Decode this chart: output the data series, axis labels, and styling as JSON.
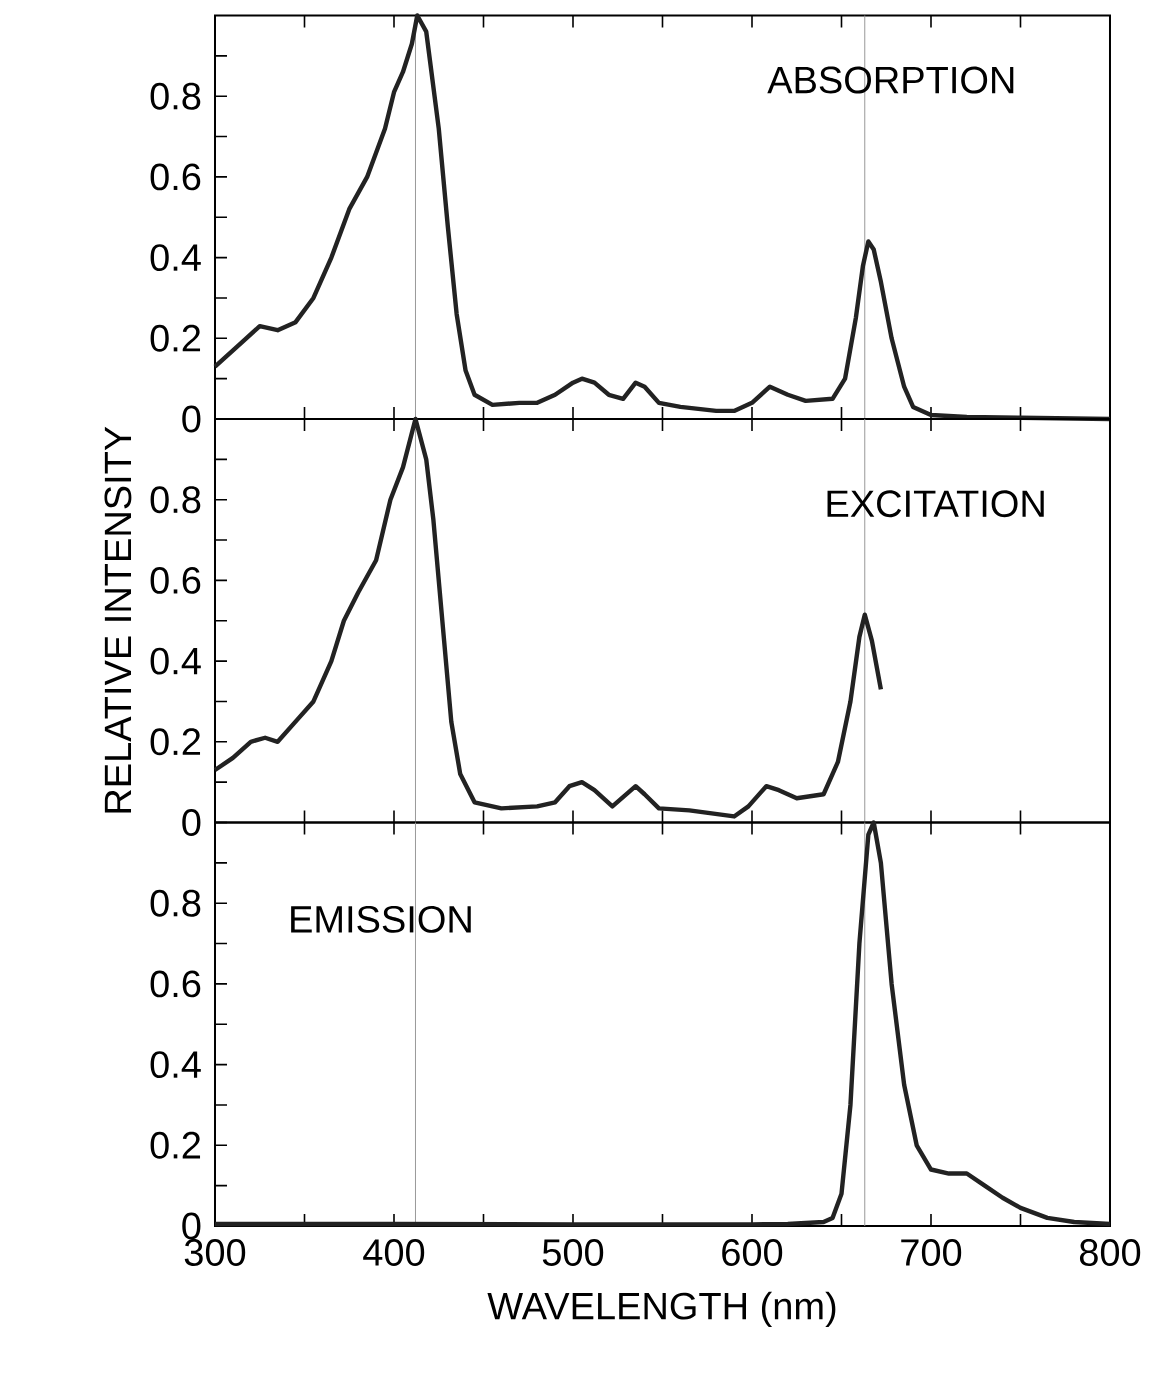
{
  "chart_data": [
    {
      "type": "line",
      "color": "#222222",
      "xlim": [
        300,
        800
      ],
      "ylim": [
        0,
        1
      ],
      "tick_labels": "y",
      "xticks": [
        300,
        {
          "value": 350,
          "label": null
        },
        400,
        {
          "value": 450,
          "label": null
        },
        500,
        {
          "value": 550,
          "label": null
        },
        600,
        {
          "value": 650,
          "label": null
        },
        700,
        {
          "value": 750,
          "label": null
        },
        800
      ],
      "yticks": [
        0,
        {
          "value": 0.1,
          "label": null
        },
        0.2,
        {
          "value": 0.3,
          "label": null
        },
        0.4,
        {
          "value": 0.5,
          "label": null
        },
        0.6,
        {
          "value": 0.7,
          "label": null
        },
        0.8,
        {
          "value": 0.9,
          "label": null
        }
      ],
      "annotations": [
        "ABSORPTION"
      ],
      "ref_lines": [
        {
          "axis": "x",
          "value": 412,
          "color": "#999999"
        },
        {
          "axis": "x",
          "value": 663,
          "color": "#999999"
        }
      ],
      "x": [
        300,
        315,
        325,
        335,
        345,
        355,
        365,
        375,
        385,
        395,
        400,
        405,
        410,
        413,
        418,
        425,
        430,
        435,
        440,
        445,
        455,
        470,
        480,
        490,
        500,
        505,
        512,
        520,
        528,
        535,
        540,
        548,
        560,
        580,
        590,
        600,
        610,
        620,
        630,
        645,
        652,
        658,
        662,
        665,
        668,
        672,
        678,
        685,
        690,
        700,
        720,
        750,
        800
      ],
      "values": [
        0.13,
        0.19,
        0.23,
        0.22,
        0.24,
        0.3,
        0.4,
        0.52,
        0.6,
        0.72,
        0.81,
        0.86,
        0.93,
        1.0,
        0.96,
        0.72,
        0.48,
        0.26,
        0.12,
        0.06,
        0.035,
        0.04,
        0.04,
        0.06,
        0.09,
        0.1,
        0.09,
        0.06,
        0.05,
        0.09,
        0.08,
        0.04,
        0.03,
        0.02,
        0.02,
        0.04,
        0.08,
        0.06,
        0.045,
        0.05,
        0.1,
        0.25,
        0.38,
        0.44,
        0.42,
        0.34,
        0.2,
        0.08,
        0.03,
        0.01,
        0.005,
        0.003,
        0
      ]
    },
    {
      "type": "line",
      "color": "#222222",
      "xlim": [
        300,
        800
      ],
      "ylim": [
        0,
        1
      ],
      "tick_labels": "y",
      "ylabel": "RELATIVE INTENSITY",
      "xticks": [
        300,
        {
          "value": 350,
          "label": null
        },
        400,
        {
          "value": 450,
          "label": null
        },
        500,
        {
          "value": 550,
          "label": null
        },
        600,
        {
          "value": 650,
          "label": null
        },
        700,
        {
          "value": 750,
          "label": null
        },
        800
      ],
      "yticks": [
        0,
        {
          "value": 0.1,
          "label": null
        },
        0.2,
        {
          "value": 0.3,
          "label": null
        },
        0.4,
        {
          "value": 0.5,
          "label": null
        },
        0.6,
        {
          "value": 0.7,
          "label": null
        },
        0.8,
        {
          "value": 0.9,
          "label": null
        }
      ],
      "annotations": [
        "EXCITATION"
      ],
      "ref_lines": [
        {
          "axis": "x",
          "value": 412,
          "color": "#999999"
        },
        {
          "axis": "x",
          "value": 663,
          "color": "#999999"
        }
      ],
      "x": [
        300,
        310,
        320,
        328,
        335,
        345,
        355,
        365,
        372,
        380,
        390,
        398,
        405,
        412,
        418,
        422,
        428,
        432,
        437,
        445,
        460,
        480,
        490,
        498,
        505,
        512,
        522,
        535,
        540,
        548,
        565,
        590,
        598,
        608,
        615,
        625,
        640,
        648,
        655,
        660,
        663,
        667,
        672
      ],
      "values": [
        0.13,
        0.16,
        0.2,
        0.21,
        0.2,
        0.25,
        0.3,
        0.4,
        0.5,
        0.57,
        0.65,
        0.8,
        0.88,
        1.0,
        0.9,
        0.75,
        0.45,
        0.25,
        0.12,
        0.05,
        0.035,
        0.04,
        0.05,
        0.09,
        0.1,
        0.08,
        0.04,
        0.09,
        0.07,
        0.035,
        0.03,
        0.015,
        0.04,
        0.09,
        0.08,
        0.06,
        0.07,
        0.15,
        0.3,
        0.46,
        0.515,
        0.45,
        0.33
      ]
    },
    {
      "type": "line",
      "color": "#222222",
      "xlim": [
        300,
        800
      ],
      "ylim": [
        0,
        1
      ],
      "xlabel": "WAVELENGTH (nm)",
      "xticks": [
        300,
        {
          "value": 350,
          "label": null
        },
        400,
        {
          "value": 450,
          "label": null
        },
        500,
        {
          "value": 550,
          "label": null
        },
        600,
        {
          "value": 650,
          "label": null
        },
        700,
        {
          "value": 750,
          "label": null
        },
        800
      ],
      "yticks": [
        0,
        {
          "value": 0.1,
          "label": null
        },
        0.2,
        {
          "value": 0.3,
          "label": null
        },
        0.4,
        {
          "value": 0.5,
          "label": null
        },
        0.6,
        {
          "value": 0.7,
          "label": null
        },
        0.8,
        {
          "value": 0.9,
          "label": null
        }
      ],
      "annotations": [
        "EMISSION"
      ],
      "ref_lines": [
        {
          "axis": "x",
          "value": 412,
          "color": "#999999"
        },
        {
          "axis": "x",
          "value": 663,
          "color": "#999999"
        }
      ],
      "x": [
        300,
        400,
        500,
        600,
        620,
        640,
        645,
        650,
        655,
        660,
        665,
        668,
        672,
        678,
        685,
        692,
        700,
        710,
        720,
        730,
        740,
        750,
        765,
        780,
        800
      ],
      "values": [
        0.005,
        0.005,
        0.004,
        0.004,
        0.005,
        0.01,
        0.02,
        0.08,
        0.3,
        0.7,
        0.97,
        1.0,
        0.9,
        0.6,
        0.35,
        0.2,
        0.14,
        0.13,
        0.13,
        0.1,
        0.07,
        0.045,
        0.02,
        0.01,
        0.005
      ]
    }
  ]
}
